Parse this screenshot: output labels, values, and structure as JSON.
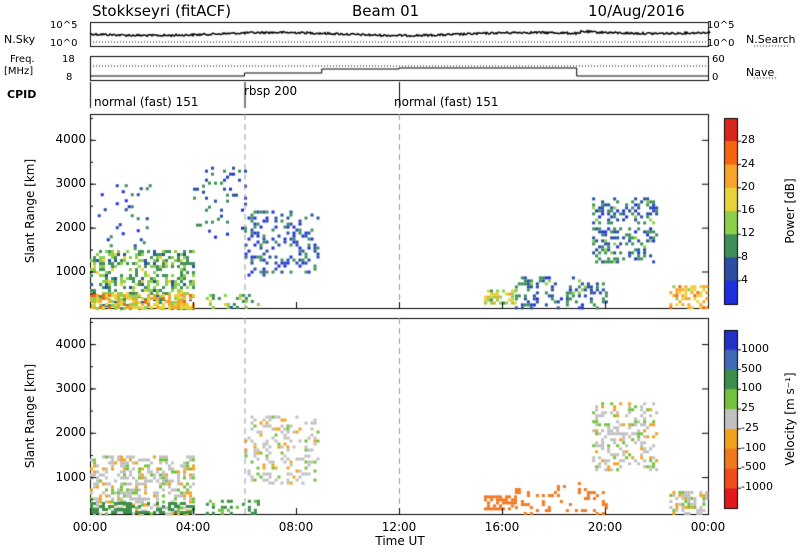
{
  "header": {
    "station": "Stokkseyri (fitACF)",
    "beam": "Beam 01",
    "date": "10/Aug/2016"
  },
  "top_strip": {
    "nsky_label": "N.Sky",
    "nsky_scale": [
      "10^5",
      "10^0"
    ],
    "nsearch_label": "N.Search",
    "nsearch_scale": [
      "10^5",
      "10^0"
    ],
    "freq_label": "Freq.",
    "freq_unit": "[MHz]",
    "freq_scale": [
      "18",
      "8"
    ],
    "nave_label": "Nave",
    "nave_scale": [
      "60",
      "0"
    ],
    "cpid_label": "CPID",
    "cpid_segments": [
      {
        "label": "normal (fast) 151",
        "start_hour": 0,
        "end_hour": 6
      },
      {
        "label": "rbsp 200",
        "start_hour": 6,
        "end_hour": 12
      },
      {
        "label": "normal (fast) 151",
        "start_hour": 12,
        "end_hour": 24
      }
    ]
  },
  "colorbars": {
    "power": {
      "title": "Power [dB]",
      "ticks": [
        "28",
        "24",
        "20",
        "16",
        "12",
        "8",
        "4"
      ],
      "colors": [
        "#d9261c",
        "#f5640f",
        "#f7a52a",
        "#e8d23a",
        "#8ccf4a",
        "#3f8f59",
        "#2a4fa2",
        "#1f2fe0"
      ]
    },
    "velocity": {
      "title": "Velocity [m s⁻¹]",
      "ticks": [
        "1000",
        "500",
        "100",
        "25",
        "-25",
        "-100",
        "-500",
        "-1000"
      ],
      "colors": [
        "#2331c9",
        "#3f6ab9",
        "#3c8f4a",
        "#73c13c",
        "#c0c0c0",
        "#f0a21f",
        "#f2781e",
        "#f04d18",
        "#e3181c"
      ]
    }
  },
  "chart_data": [
    {
      "type": "heatmap",
      "title": "Power",
      "ylabel": "Slant Range [km]",
      "xlabel": "Time UT",
      "yticks": [
        1000,
        2000,
        3000,
        4000
      ],
      "ylim": [
        180,
        4600
      ],
      "xticks": [
        "00:00",
        "04:00",
        "08:00",
        "12:00",
        "16:00",
        "20:00",
        "00:00"
      ],
      "xlim_hours": [
        0,
        24
      ],
      "colorbar": "power",
      "echo_regions": [
        {
          "t0": 0.0,
          "t1": 4.0,
          "r0": 200,
          "r1": 1500,
          "power_db": 12,
          "density": 0.45
        },
        {
          "t0": 0.0,
          "t1": 4.0,
          "r0": 200,
          "r1": 500,
          "power_db": 20,
          "density": 0.6
        },
        {
          "t0": 0.3,
          "t1": 2.4,
          "r0": 1500,
          "r1": 3000,
          "power_db": 6,
          "density": 0.08
        },
        {
          "t0": 4.0,
          "t1": 6.0,
          "r0": 1800,
          "r1": 3400,
          "power_db": 6,
          "density": 0.12
        },
        {
          "t0": 4.5,
          "t1": 6.5,
          "r0": 200,
          "r1": 500,
          "power_db": 12,
          "density": 0.35
        },
        {
          "t0": 6.0,
          "t1": 8.8,
          "r0": 900,
          "r1": 2400,
          "power_db": 6,
          "density": 0.25
        },
        {
          "t0": 15.3,
          "t1": 16.5,
          "r0": 300,
          "r1": 600,
          "power_db": 16,
          "density": 0.55
        },
        {
          "t0": 16.5,
          "t1": 20.0,
          "r0": 200,
          "r1": 900,
          "power_db": 8,
          "density": 0.25
        },
        {
          "t0": 19.5,
          "t1": 22.0,
          "r0": 1200,
          "r1": 2700,
          "power_db": 8,
          "density": 0.35
        },
        {
          "t0": 22.5,
          "t1": 24.0,
          "r0": 200,
          "r1": 700,
          "power_db": 20,
          "density": 0.55
        }
      ]
    },
    {
      "type": "heatmap",
      "title": "Velocity",
      "ylabel": "Slant Range [km]",
      "xlabel": "Time UT",
      "yticks": [
        1000,
        2000,
        3000,
        4000
      ],
      "ylim": [
        180,
        4600
      ],
      "xticks": [
        "00:00",
        "04:00",
        "08:00",
        "12:00",
        "16:00",
        "20:00",
        "00:00"
      ],
      "xlim_hours": [
        0,
        24
      ],
      "colorbar": "velocity",
      "echo_regions": [
        {
          "t0": 0.0,
          "t1": 4.0,
          "r0": 200,
          "r1": 1500,
          "velocity": 0,
          "density": 0.45
        },
        {
          "t0": 0.0,
          "t1": 4.0,
          "r0": 200,
          "r1": 450,
          "velocity": 150,
          "density": 0.5
        },
        {
          "t0": 4.5,
          "t1": 6.5,
          "r0": 200,
          "r1": 500,
          "velocity": 120,
          "density": 0.3
        },
        {
          "t0": 6.0,
          "t1": 8.8,
          "r0": 900,
          "r1": 2400,
          "velocity": 0,
          "density": 0.25
        },
        {
          "t0": 15.3,
          "t1": 16.5,
          "r0": 300,
          "r1": 600,
          "velocity": -300,
          "density": 0.6
        },
        {
          "t0": 16.5,
          "t1": 20.0,
          "r0": 200,
          "r1": 900,
          "velocity": -150,
          "density": 0.2
        },
        {
          "t0": 19.5,
          "t1": 22.0,
          "r0": 1200,
          "r1": 2700,
          "velocity": 0,
          "density": 0.35
        },
        {
          "t0": 22.5,
          "t1": 24.0,
          "r0": 200,
          "r1": 700,
          "velocity": 0,
          "density": 0.5
        }
      ]
    }
  ]
}
